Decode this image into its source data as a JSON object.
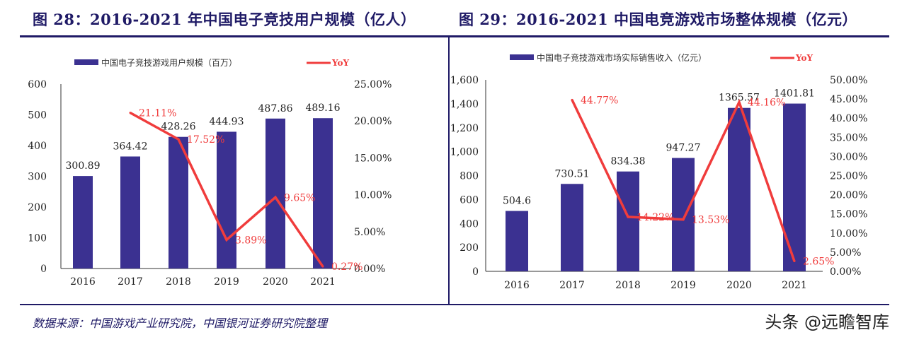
{
  "chart_data": [
    {
      "type": "bar+line",
      "title": "图 28：2016-2021 年中国电子竞技用户规模（亿人）",
      "categories": [
        "2016",
        "2017",
        "2018",
        "2019",
        "2020",
        "2021"
      ],
      "series": [
        {
          "name": "中国电子竞技游戏用户规模（百万）",
          "type": "bar",
          "axis": "left",
          "values": [
            300.89,
            364.42,
            428.26,
            444.93,
            487.86,
            489.16
          ],
          "labels": [
            "300.89",
            "364.42",
            "428.26",
            "444.93",
            "487.86",
            "489.16"
          ]
        },
        {
          "name": "YoY",
          "type": "line",
          "axis": "right",
          "values": [
            null,
            21.11,
            17.52,
            3.89,
            9.65,
            0.27
          ],
          "labels": [
            "",
            "21.11%",
            "17.52%",
            "3.89%",
            "9.65%",
            "0.27%"
          ]
        }
      ],
      "ylim": [
        0,
        600
      ],
      "yticks": [
        "0",
        "100",
        "200",
        "300",
        "400",
        "500",
        "600"
      ],
      "y2lim": [
        0,
        25
      ],
      "y2ticks": [
        "0.00%",
        "5.00%",
        "10.00%",
        "15.00%",
        "20.00%",
        "25.00%"
      ],
      "legend": "top",
      "grid": false
    },
    {
      "type": "bar+line",
      "title": "图 29：2016-2021 中国电竞游戏市场整体规模（亿元）",
      "categories": [
        "2016",
        "2017",
        "2018",
        "2019",
        "2020",
        "2021"
      ],
      "series": [
        {
          "name": "中国电子竞技游戏市场实际销售收入（亿元）",
          "type": "bar",
          "axis": "left",
          "values": [
            504.6,
            730.51,
            834.38,
            947.27,
            1365.57,
            1401.81
          ],
          "labels": [
            "504.6",
            "730.51",
            "834.38",
            "947.27",
            "1365.57",
            "1401.81"
          ]
        },
        {
          "name": "YoY",
          "type": "line",
          "axis": "right",
          "values": [
            null,
            44.77,
            14.22,
            13.53,
            44.16,
            2.65
          ],
          "labels": [
            "",
            "44.77%",
            "14.22%",
            "13.53%",
            "44.16%",
            "2.65%"
          ]
        }
      ],
      "ylim": [
        0,
        1600
      ],
      "yticks": [
        "0",
        "200",
        "400",
        "600",
        "800",
        "1,000",
        "1,200",
        "1,400",
        "1,600"
      ],
      "y2lim": [
        0,
        50
      ],
      "y2ticks": [
        "0.00%",
        "5.00%",
        "10.00%",
        "15.00%",
        "20.00%",
        "25.00%",
        "30.00%",
        "35.00%",
        "40.00%",
        "45.00%",
        "50.00%"
      ],
      "legend": "top",
      "grid": false
    }
  ],
  "footer": "数据来源：中国游戏产业研究院，中国银河证券研究院整理",
  "watermark": "头条 @远瞻智库",
  "colors": {
    "bar": "#3b3191",
    "line": "#f03c3c",
    "title": "#1f1a66"
  }
}
